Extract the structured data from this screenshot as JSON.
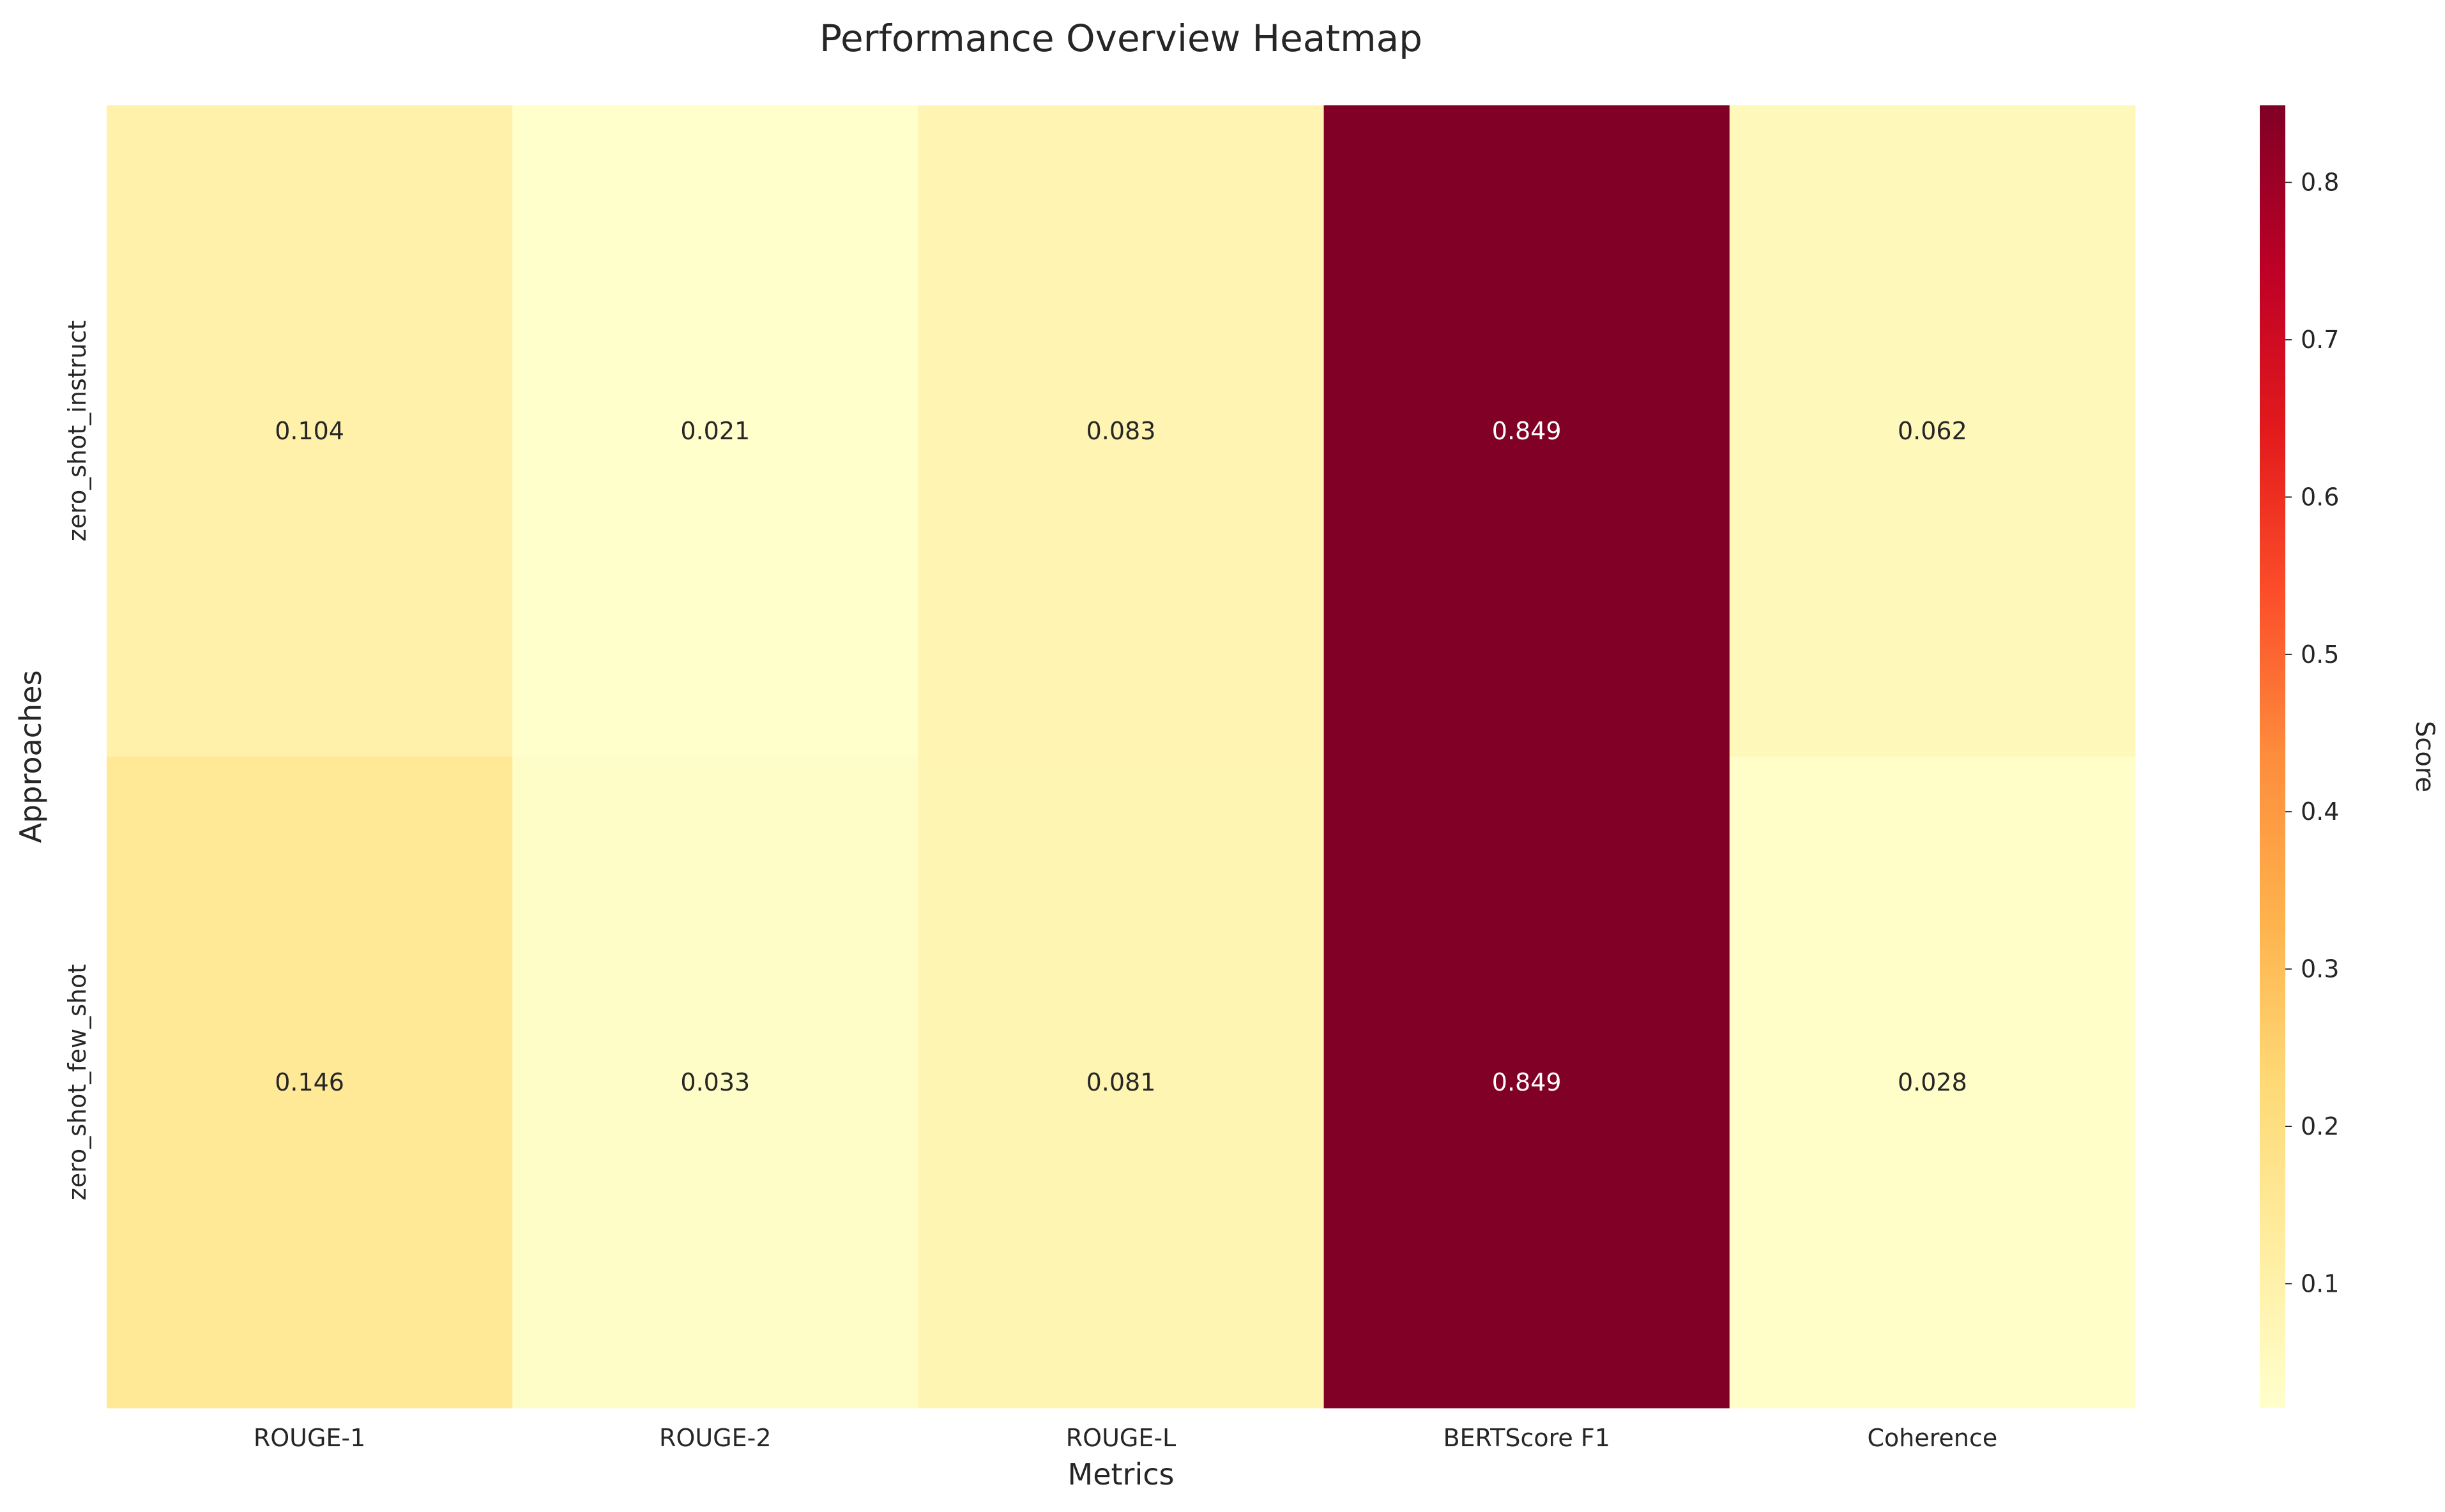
{
  "chart_data": {
    "type": "heatmap",
    "title": "Performance Overview Heatmap",
    "xlabel": "Metrics",
    "ylabel": "Approaches",
    "x_categories": [
      "ROUGE-1",
      "ROUGE-2",
      "ROUGE-L",
      "BERTScore F1",
      "Coherence"
    ],
    "y_categories": [
      "zero_shot_instruct",
      "zero_shot_few_shot"
    ],
    "values": [
      [
        0.104,
        0.021,
        0.083,
        0.849,
        0.062
      ],
      [
        0.146,
        0.033,
        0.081,
        0.849,
        0.028
      ]
    ],
    "value_labels": [
      [
        "0.104",
        "0.021",
        "0.083",
        "0.849",
        "0.062"
      ],
      [
        "0.146",
        "0.033",
        "0.081",
        "0.849",
        "0.028"
      ]
    ],
    "colorbar": {
      "label": "Score",
      "vmin": 0.021,
      "vmax": 0.849,
      "ticks": [
        0.1,
        0.2,
        0.3,
        0.4,
        0.5,
        0.6,
        0.7,
        0.8
      ],
      "tick_labels": [
        "0.1",
        "0.2",
        "0.3",
        "0.4",
        "0.5",
        "0.6",
        "0.7",
        "0.8"
      ]
    },
    "colormap": "YlOrRd",
    "colormap_stops": [
      "#ffffcc",
      "#ffeda0",
      "#fed976",
      "#feb24c",
      "#fd8d3c",
      "#fc4e2a",
      "#e31a1c",
      "#bd0026",
      "#800026"
    ],
    "grid": false,
    "legend": "colorbar-right"
  }
}
